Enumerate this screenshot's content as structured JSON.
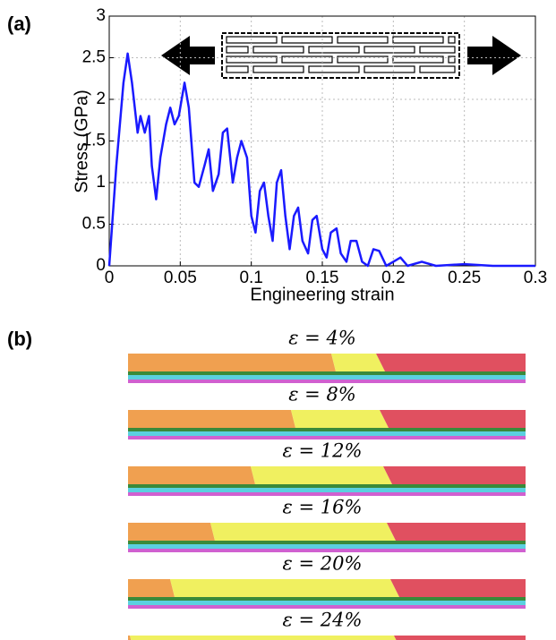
{
  "chart_data": {
    "type": "line",
    "xlabel": "Engineering strain",
    "ylabel": "Stress (GPa)",
    "xlim": [
      0,
      0.3
    ],
    "xticks": [
      0,
      0.05,
      0.1,
      0.15,
      0.2,
      0.25,
      0.3
    ],
    "ylim": [
      0,
      3
    ],
    "yticks": [
      0,
      0.5,
      1,
      1.5,
      2,
      2.5,
      3
    ],
    "grid": true,
    "x": [
      0,
      0.005,
      0.01,
      0.013,
      0.016,
      0.02,
      0.022,
      0.025,
      0.028,
      0.03,
      0.033,
      0.036,
      0.04,
      0.043,
      0.046,
      0.049,
      0.053,
      0.056,
      0.06,
      0.063,
      0.067,
      0.07,
      0.073,
      0.077,
      0.08,
      0.083,
      0.087,
      0.09,
      0.093,
      0.097,
      0.1,
      0.103,
      0.106,
      0.109,
      0.112,
      0.115,
      0.118,
      0.121,
      0.124,
      0.127,
      0.13,
      0.133,
      0.136,
      0.14,
      0.143,
      0.146,
      0.15,
      0.153,
      0.156,
      0.16,
      0.163,
      0.167,
      0.17,
      0.174,
      0.178,
      0.182,
      0.186,
      0.19,
      0.195,
      0.2,
      0.205,
      0.21,
      0.22,
      0.23,
      0.25,
      0.27,
      0.3
    ],
    "series": [
      {
        "color": "#1a1aff",
        "values": [
          0,
          1.2,
          2.2,
          2.55,
          2.2,
          1.6,
          1.8,
          1.6,
          1.8,
          1.2,
          0.8,
          1.3,
          1.7,
          1.9,
          1.7,
          1.8,
          2.2,
          1.9,
          1.0,
          0.95,
          1.2,
          1.4,
          0.9,
          1.1,
          1.6,
          1.65,
          1.0,
          1.3,
          1.5,
          1.3,
          0.6,
          0.4,
          0.9,
          1.0,
          0.6,
          0.3,
          1.0,
          1.15,
          0.6,
          0.2,
          0.6,
          0.7,
          0.3,
          0.15,
          0.55,
          0.6,
          0.2,
          0.1,
          0.4,
          0.45,
          0.15,
          0.05,
          0.3,
          0.3,
          0.05,
          0,
          0.2,
          0.18,
          0,
          0.05,
          0.1,
          0,
          0.05,
          0,
          0.02,
          0,
          0
        ]
      }
    ]
  },
  "panels": [
    "(a)",
    "(b)"
  ],
  "snapshots": [
    "ε = 4%",
    "ε = 8%",
    "ε = 12%",
    "ε = 16%",
    "ε = 20%",
    "ε = 24%"
  ]
}
